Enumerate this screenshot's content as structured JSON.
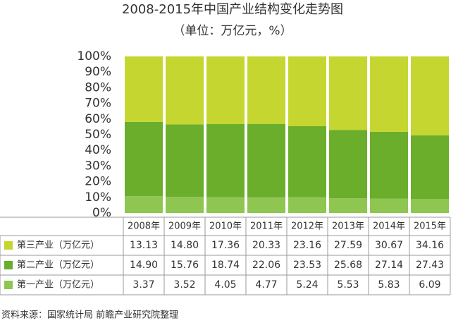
{
  "chart_data": {
    "type": "bar",
    "stacked": "percent",
    "title": "2008-2015年中国产业结构变化走势图",
    "subtitle": "（单位：万亿元，%）",
    "categories": [
      "2008年",
      "2009年",
      "2010年",
      "2011年",
      "2012年",
      "2013年",
      "2014年",
      "2015年"
    ],
    "series": [
      {
        "name": "第三产业（万亿元）",
        "color": "#c6d630",
        "values": [
          13.13,
          14.8,
          17.36,
          20.33,
          23.16,
          27.59,
          30.67,
          34.16
        ],
        "value_labels": [
          "13.13",
          "14.80",
          "17.36",
          "20.33",
          "23.16",
          "27.59",
          "30.67",
          "34.16"
        ]
      },
      {
        "name": "第二产业（万亿元）",
        "color": "#6aae2c",
        "values": [
          14.9,
          15.76,
          18.74,
          22.06,
          23.53,
          25.68,
          27.14,
          27.43
        ],
        "value_labels": [
          "14.90",
          "15.76",
          "18.74",
          "22.06",
          "23.53",
          "25.68",
          "27.14",
          "27.43"
        ]
      },
      {
        "name": "第一产业（万亿元）",
        "color": "#8ec651",
        "values": [
          3.37,
          3.52,
          4.05,
          4.77,
          5.24,
          5.53,
          5.83,
          6.09
        ],
        "value_labels": [
          "3.37",
          "3.52",
          "4.05",
          "4.77",
          "5.24",
          "5.53",
          "5.83",
          "6.09"
        ]
      }
    ],
    "ylim": [
      0,
      100
    ],
    "yticks": [
      {
        "value": 0,
        "label": "0%"
      },
      {
        "value": 10,
        "label": "10%"
      },
      {
        "value": 20,
        "label": "20%"
      },
      {
        "value": 30,
        "label": "30%"
      },
      {
        "value": 40,
        "label": "40%"
      },
      {
        "value": 50,
        "label": "50%"
      },
      {
        "value": 60,
        "label": "60%"
      },
      {
        "value": 70,
        "label": "70%"
      },
      {
        "value": 80,
        "label": "80%"
      },
      {
        "value": 90,
        "label": "90%"
      },
      {
        "value": 100,
        "label": "100%"
      }
    ],
    "source": "资料来源：国家统计局 前瞻产业研究院整理"
  }
}
